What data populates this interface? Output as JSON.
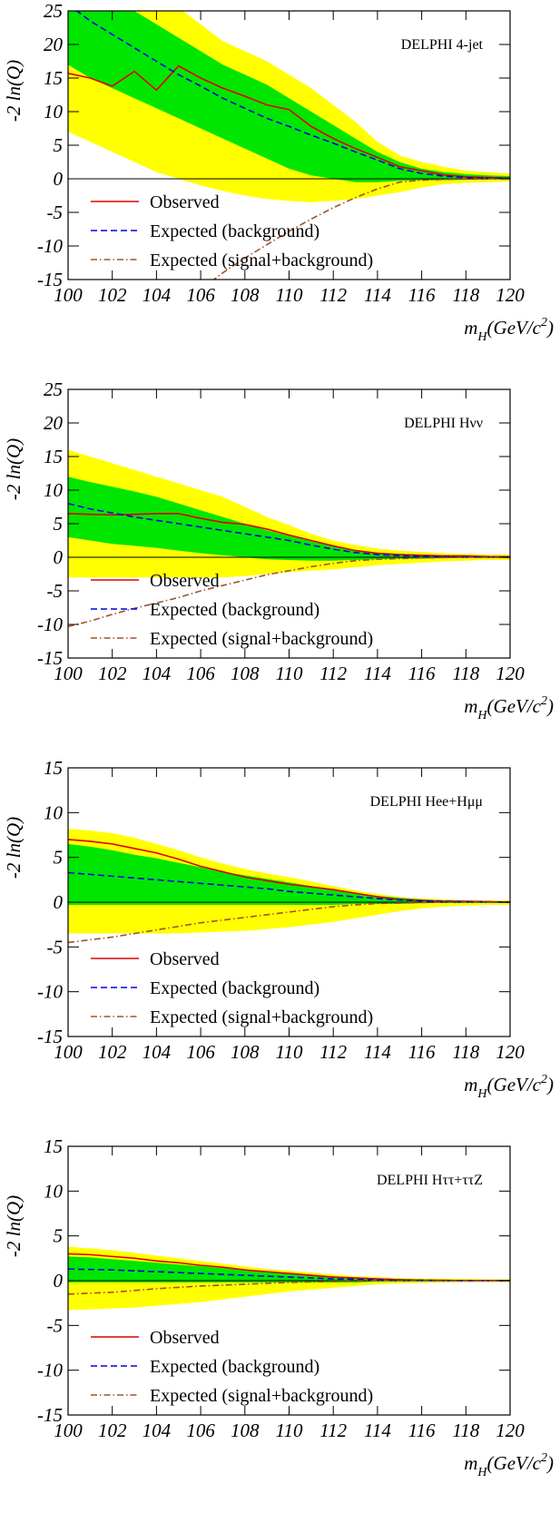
{
  "chart_data": [
    {
      "type": "line",
      "annotation": "DELPHI 4-jet",
      "y_label": "-2 ln(Q)",
      "x_label": [
        "m",
        "H",
        "(GeV/c",
        "2",
        ")"
      ],
      "x": [
        100,
        101,
        102,
        103,
        104,
        105,
        106,
        107,
        108,
        109,
        110,
        111,
        112,
        113,
        114,
        115,
        116,
        117,
        118,
        119,
        120
      ],
      "xlim": [
        100,
        120
      ],
      "xticks": [
        100,
        102,
        104,
        106,
        108,
        110,
        112,
        114,
        116,
        118,
        120
      ],
      "ylim": [
        -15,
        25
      ],
      "yticks": [
        -15,
        -10,
        -5,
        0,
        5,
        10,
        15,
        20,
        25
      ],
      "bands": [
        {
          "color": "#ffff00",
          "upper": [
            40,
            37,
            34,
            31,
            28,
            25.5,
            23,
            20.5,
            19,
            17.5,
            15.5,
            13.5,
            11,
            8.5,
            5.5,
            3.5,
            2.5,
            1.8,
            1.2,
            1,
            0.8
          ],
          "lower": [
            7,
            5.5,
            4,
            2.5,
            1,
            0,
            -1,
            -1.8,
            -2.5,
            -3,
            -3.3,
            -3.5,
            -3.3,
            -3,
            -2.5,
            -2,
            -1.3,
            -0.8,
            -0.6,
            -0.5,
            -0.4
          ]
        },
        {
          "color": "#00e600",
          "upper": [
            33,
            30,
            27.5,
            25,
            23,
            21,
            19,
            17,
            15.5,
            14,
            12,
            10,
            8,
            6,
            4,
            2.5,
            1.5,
            1,
            0.7,
            0.5,
            0.4
          ],
          "lower": [
            17,
            15,
            13.5,
            12,
            10.5,
            9,
            7.5,
            6,
            4.5,
            3,
            1.5,
            0.5,
            0,
            -0.5,
            -0.5,
            -0.3,
            -0.2,
            -0.2,
            -0.1,
            -0.1,
            0
          ]
        }
      ],
      "series": [
        {
          "name": "Observed",
          "color": "#e00000",
          "dash": "solid",
          "values": [
            15.7,
            15,
            13.8,
            16,
            13.2,
            16.8,
            15,
            13.5,
            12.3,
            11,
            10.3,
            7.8,
            6,
            4.5,
            3.2,
            1.8,
            1.2,
            0.6,
            0.3,
            0.2,
            0.1
          ]
        },
        {
          "name": "Expected (background)",
          "color": "#0000e0",
          "dash": "dashed",
          "values": [
            26,
            23.5,
            21.5,
            19.5,
            17.5,
            15.5,
            13.8,
            12,
            10.5,
            9,
            7.8,
            6.5,
            5.3,
            4,
            2.8,
            1.5,
            0.8,
            0.4,
            0.2,
            0.1,
            0.05
          ]
        },
        {
          "name": "Expected (signal+background)",
          "color": "#a0522d",
          "dash": "dashdot",
          "values": [
            null,
            null,
            null,
            null,
            null,
            null,
            -16.5,
            -14,
            -11.8,
            -9.8,
            -7.8,
            -6,
            -4.3,
            -2.8,
            -1.5,
            -0.5,
            -0.2,
            -0.1,
            -0.05,
            0,
            0
          ]
        }
      ]
    },
    {
      "type": "line",
      "annotation": "DELPHI Hνν",
      "y_label": "-2 ln(Q)",
      "x_label": [
        "m",
        "H",
        "(GeV/c",
        "2",
        ")"
      ],
      "x": [
        100,
        101,
        102,
        103,
        104,
        105,
        106,
        107,
        108,
        109,
        110,
        111,
        112,
        113,
        114,
        115,
        116,
        117,
        118,
        119,
        120
      ],
      "xlim": [
        100,
        120
      ],
      "xticks": [
        100,
        102,
        104,
        106,
        108,
        110,
        112,
        114,
        116,
        118,
        120
      ],
      "ylim": [
        -15,
        25
      ],
      "yticks": [
        -15,
        -10,
        -5,
        0,
        5,
        10,
        15,
        20,
        25
      ],
      "bands": [
        {
          "color": "#ffff00",
          "upper": [
            16,
            15,
            14,
            13,
            12,
            11,
            10,
            9,
            7.5,
            6,
            4.8,
            3.5,
            2.5,
            1.8,
            1.3,
            1,
            0.8,
            0.6,
            0.5,
            0.4,
            0.4
          ],
          "lower": [
            -3,
            -3,
            -3,
            -3,
            -3,
            -3,
            -3,
            -3,
            -2.8,
            -2.5,
            -2.2,
            -2,
            -1.8,
            -1.5,
            -1.2,
            -1,
            -0.8,
            -0.6,
            -0.5,
            -0.4,
            -0.4
          ]
        },
        {
          "color": "#00e600",
          "upper": [
            12,
            11.2,
            10.5,
            9.8,
            9,
            8,
            7,
            6,
            5,
            4,
            3.2,
            2.4,
            1.7,
            1.1,
            0.7,
            0.5,
            0.4,
            0.3,
            0.3,
            0.2,
            0.2
          ],
          "lower": [
            3,
            2.5,
            2,
            1.7,
            1.4,
            1,
            0.6,
            0.3,
            0,
            -0.3,
            -0.4,
            -0.5,
            -0.5,
            -0.4,
            -0.3,
            -0.2,
            -0.2,
            -0.1,
            -0.1,
            -0.1,
            -0.1
          ]
        }
      ],
      "series": [
        {
          "name": "Observed",
          "color": "#e00000",
          "dash": "solid",
          "values": [
            6.5,
            6.4,
            6.3,
            6.4,
            6.5,
            6.5,
            5.8,
            5.2,
            4.9,
            4.2,
            3.3,
            2.5,
            1.7,
            1,
            0.6,
            0.4,
            0.3,
            0.2,
            0.2,
            0.1,
            0.1
          ]
        },
        {
          "name": "Expected (background)",
          "color": "#0000e0",
          "dash": "dashed",
          "values": [
            8,
            7.2,
            6.6,
            6,
            5.5,
            5,
            4.5,
            4,
            3.5,
            3,
            2.5,
            1.8,
            1.2,
            0.7,
            0.4,
            0.25,
            0.15,
            0.1,
            0.05,
            0.05,
            0
          ]
        },
        {
          "name": "Expected (signal+background)",
          "color": "#a0522d",
          "dash": "dashdot",
          "values": [
            -10.3,
            -9.5,
            -8.5,
            -7.6,
            -6.8,
            -6,
            -5,
            -4.2,
            -3.4,
            -2.6,
            -2,
            -1.4,
            -0.9,
            -0.5,
            -0.3,
            -0.2,
            -0.1,
            -0.05,
            0,
            0,
            0
          ]
        }
      ]
    },
    {
      "type": "line",
      "annotation": "DELPHI Hee+Hμμ",
      "y_label": "-2 ln(Q)",
      "x_label": [
        "m",
        "H",
        "(GeV/c",
        "2",
        ")"
      ],
      "x": [
        100,
        101,
        102,
        103,
        104,
        105,
        106,
        107,
        108,
        109,
        110,
        111,
        112,
        113,
        114,
        115,
        116,
        117,
        118,
        119,
        120
      ],
      "xlim": [
        100,
        120
      ],
      "xticks": [
        100,
        102,
        104,
        106,
        108,
        110,
        112,
        114,
        116,
        118,
        120
      ],
      "ylim": [
        -15,
        15
      ],
      "yticks": [
        -15,
        -10,
        -5,
        0,
        5,
        10,
        15
      ],
      "bands": [
        {
          "color": "#ffff00",
          "upper": [
            8.2,
            8,
            7.7,
            7.2,
            6.5,
            5.8,
            5,
            4.3,
            3.7,
            3.2,
            2.8,
            2.3,
            1.8,
            1.3,
            0.9,
            0.6,
            0.4,
            0.3,
            0.2,
            0.2,
            0.2
          ],
          "lower": [
            -3.5,
            -3.5,
            -3.5,
            -3.5,
            -3.5,
            -3.5,
            -3.4,
            -3.3,
            -3.2,
            -3,
            -2.8,
            -2.5,
            -2.2,
            -1.8,
            -1.4,
            -1,
            -0.7,
            -0.5,
            -0.4,
            -0.3,
            -0.3
          ]
        },
        {
          "color": "#00e600",
          "upper": [
            6.5,
            6.2,
            5.8,
            5.3,
            4.9,
            4.4,
            3.9,
            3.4,
            3,
            2.6,
            2.2,
            1.8,
            1.4,
            1,
            0.7,
            0.5,
            0.3,
            0.2,
            0.15,
            0.1,
            0.1
          ],
          "lower": [
            -0.3,
            -0.3,
            -0.3,
            -0.3,
            -0.3,
            -0.3,
            -0.3,
            -0.3,
            -0.3,
            -0.3,
            -0.3,
            -0.3,
            -0.3,
            -0.2,
            -0.2,
            -0.2,
            -0.1,
            -0.1,
            -0.1,
            -0.1,
            -0.1
          ]
        }
      ],
      "series": [
        {
          "name": "Observed",
          "color": "#e00000",
          "dash": "solid",
          "values": [
            7,
            6.8,
            6.5,
            6,
            5.5,
            4.8,
            4,
            3.4,
            2.8,
            2.4,
            2,
            1.7,
            1.4,
            1,
            0.6,
            0.3,
            0.2,
            0.1,
            0.1,
            0.05,
            0
          ]
        },
        {
          "name": "Expected (background)",
          "color": "#0000e0",
          "dash": "dashed",
          "values": [
            3.3,
            3.1,
            2.9,
            2.7,
            2.5,
            2.3,
            2.1,
            1.9,
            1.7,
            1.5,
            1.2,
            1,
            0.8,
            0.6,
            0.4,
            0.25,
            0.15,
            0.1,
            0.05,
            0.05,
            0
          ]
        },
        {
          "name": "Expected (signal+background)",
          "color": "#a0522d",
          "dash": "dashdot",
          "values": [
            -4.5,
            -4.2,
            -3.9,
            -3.5,
            -3.1,
            -2.7,
            -2.3,
            -2,
            -1.7,
            -1.4,
            -1.1,
            -0.8,
            -0.5,
            -0.3,
            -0.15,
            -0.1,
            -0.05,
            0,
            0,
            0,
            0
          ]
        }
      ]
    },
    {
      "type": "line",
      "annotation": "DELPHI Hττ+ττZ",
      "y_label": "-2 ln(Q)",
      "x_label": [
        "m",
        "H",
        "(GeV/c",
        "2",
        ")"
      ],
      "x": [
        100,
        101,
        102,
        103,
        104,
        105,
        106,
        107,
        108,
        109,
        110,
        111,
        112,
        113,
        114,
        115,
        116,
        117,
        118,
        119,
        120
      ],
      "xlim": [
        100,
        120
      ],
      "xticks": [
        100,
        102,
        104,
        106,
        108,
        110,
        112,
        114,
        116,
        118,
        120
      ],
      "ylim": [
        -15,
        15
      ],
      "yticks": [
        -15,
        -10,
        -5,
        0,
        5,
        10,
        15
      ],
      "bands": [
        {
          "color": "#ffff00",
          "upper": [
            3.8,
            3.6,
            3.4,
            3.1,
            2.8,
            2.5,
            2.2,
            1.9,
            1.6,
            1.3,
            1.1,
            0.9,
            0.7,
            0.5,
            0.4,
            0.3,
            0.25,
            0.2,
            0.2,
            0.15,
            0.15
          ],
          "lower": [
            -3.3,
            -3.2,
            -3.1,
            -3,
            -2.8,
            -2.6,
            -2.4,
            -2.1,
            -1.8,
            -1.5,
            -1.2,
            -1,
            -0.8,
            -0.6,
            -0.4,
            -0.3,
            -0.25,
            -0.2,
            -0.15,
            -0.15,
            -0.15
          ]
        },
        {
          "color": "#00e600",
          "upper": [
            2.7,
            2.6,
            2.4,
            2.2,
            2,
            1.8,
            1.6,
            1.4,
            1.2,
            1,
            0.8,
            0.6,
            0.5,
            0.35,
            0.25,
            0.2,
            0.15,
            0.1,
            0.1,
            0.1,
            0.1
          ],
          "lower": [
            -0.2,
            -0.2,
            -0.2,
            -0.2,
            -0.2,
            -0.2,
            -0.2,
            -0.2,
            -0.2,
            -0.2,
            -0.2,
            -0.2,
            -0.2,
            -0.2,
            -0.1,
            -0.1,
            -0.1,
            -0.1,
            -0.1,
            -0.1,
            -0.1
          ]
        }
      ],
      "series": [
        {
          "name": "Observed",
          "color": "#e00000",
          "dash": "solid",
          "values": [
            3,
            2.9,
            2.7,
            2.5,
            2.2,
            2,
            1.7,
            1.5,
            1.2,
            1,
            0.8,
            0.6,
            0.4,
            0.3,
            0.2,
            0.1,
            0.05,
            0.05,
            0,
            0,
            0
          ]
        },
        {
          "name": "Expected (background)",
          "color": "#0000e0",
          "dash": "dashed",
          "values": [
            1.3,
            1.25,
            1.2,
            1.1,
            1,
            0.9,
            0.8,
            0.7,
            0.6,
            0.5,
            0.4,
            0.3,
            0.2,
            0.15,
            0.1,
            0.05,
            0.05,
            0,
            0,
            0,
            0
          ]
        },
        {
          "name": "Expected (signal+background)",
          "color": "#a0522d",
          "dash": "dashdot",
          "values": [
            -1.5,
            -1.4,
            -1.3,
            -1.1,
            -0.9,
            -0.75,
            -0.6,
            -0.5,
            -0.4,
            -0.3,
            -0.2,
            -0.15,
            -0.1,
            -0.05,
            0,
            0,
            0,
            0,
            0,
            0,
            0
          ]
        }
      ]
    }
  ]
}
